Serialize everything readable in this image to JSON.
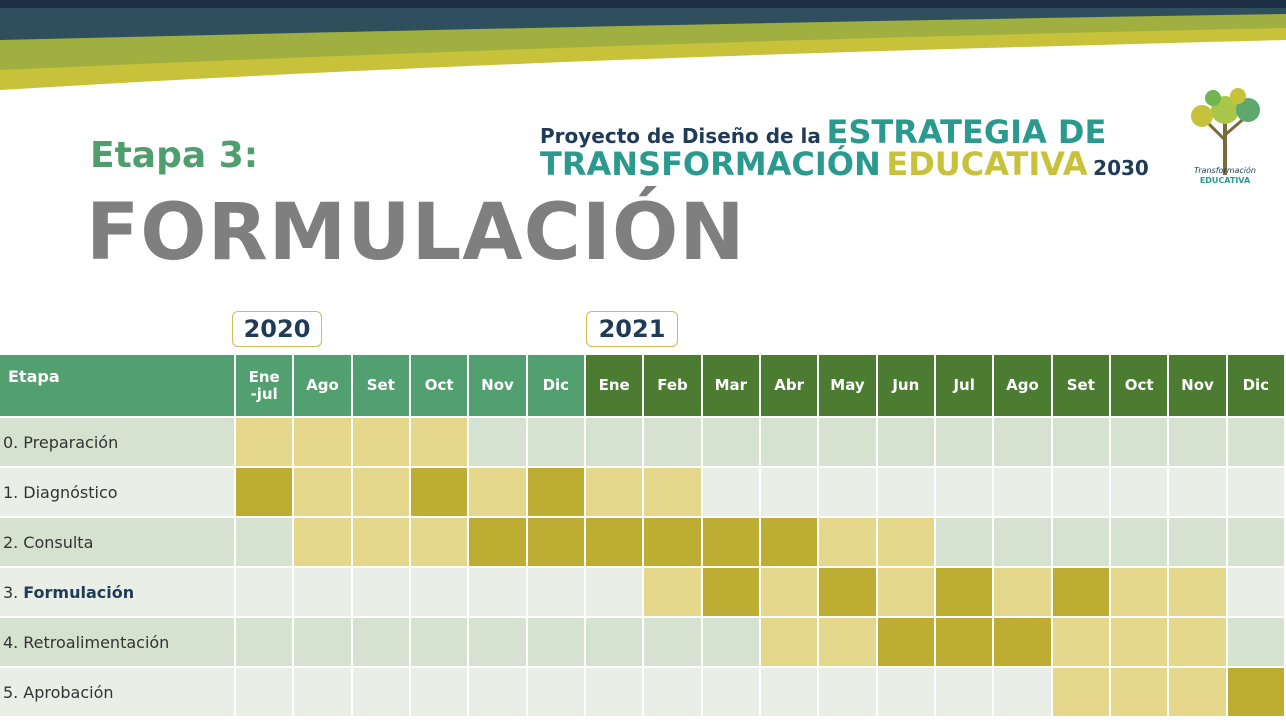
{
  "header": {
    "stage": "Etapa 3:",
    "title": "FORMULACIÓN",
    "brand": {
      "line1_prefix": "Proyecto de Diseño de la",
      "line1_main": "ESTRATEGIA DE",
      "line2_a": "TRANSFORMACIÓN",
      "line2_b": "EDUCATIVA",
      "line2_c": "2030",
      "logo_a": "Transformación",
      "logo_b": "EDUCATIVA"
    }
  },
  "years": [
    "2020",
    "2021"
  ],
  "table": {
    "corner": "Etapa",
    "months_2020": [
      "Ene\n-jul",
      "Ago",
      "Set",
      "Oct",
      "Nov",
      "Dic"
    ],
    "months_2021": [
      "Ene",
      "Feb",
      "Mar",
      "Abr",
      "May",
      "Jun",
      "Jul",
      "Ago",
      "Set",
      "Oct",
      "Nov",
      "Dic"
    ],
    "colors": {
      "none_a": "#d5e2cf",
      "none_b": "#e9efe6",
      "light": "#e5d78c",
      "dark": "#bdae33"
    },
    "rows": [
      {
        "number": "0.",
        "name": "Preparación",
        "emphasis": false,
        "cells": [
          1,
          1,
          1,
          1,
          0,
          0,
          0,
          0,
          0,
          0,
          0,
          0,
          0,
          0,
          0,
          0,
          0,
          0
        ]
      },
      {
        "number": "1.",
        "name": "Diagnóstico",
        "emphasis": false,
        "cells": [
          2,
          1,
          1,
          2,
          1,
          2,
          1,
          1,
          0,
          0,
          0,
          0,
          0,
          0,
          0,
          0,
          0,
          0
        ]
      },
      {
        "number": "2.",
        "name": "Consulta",
        "emphasis": false,
        "cells": [
          0,
          1,
          1,
          1,
          2,
          2,
          2,
          2,
          2,
          2,
          1,
          1,
          0,
          0,
          0,
          0,
          0,
          0
        ]
      },
      {
        "number": "3.",
        "name": "Formulación",
        "emphasis": true,
        "cells": [
          0,
          0,
          0,
          0,
          0,
          0,
          0,
          1,
          2,
          1,
          2,
          1,
          2,
          1,
          2,
          1,
          1,
          0
        ]
      },
      {
        "number": "4.",
        "name": "Retroalimentación",
        "emphasis": false,
        "cells": [
          0,
          0,
          0,
          0,
          0,
          0,
          0,
          0,
          0,
          1,
          1,
          2,
          2,
          2,
          1,
          1,
          1,
          0
        ]
      },
      {
        "number": "5.",
        "name": "Aprobación",
        "emphasis": false,
        "cells": [
          0,
          0,
          0,
          0,
          0,
          0,
          0,
          0,
          0,
          0,
          0,
          0,
          0,
          0,
          1,
          1,
          1,
          2
        ]
      }
    ]
  }
}
